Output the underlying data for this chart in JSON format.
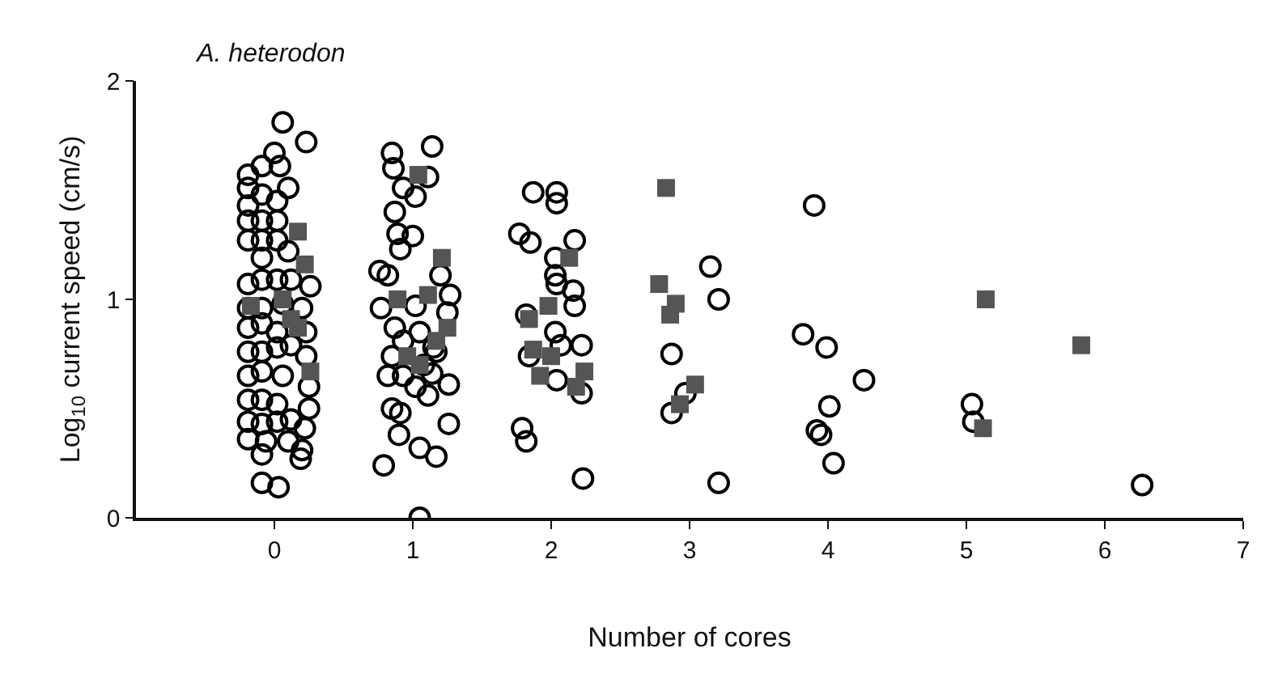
{
  "chart_data": {
    "type": "scatter",
    "title": "A. heterodon",
    "xlabel": "Number of cores",
    "ylabel": "Log$_{10}$ current speed (cm/s)",
    "xlim": [
      -1,
      7
    ],
    "xticks": [
      0,
      1,
      2,
      3,
      4,
      5,
      6,
      7
    ],
    "ylim": [
      0,
      2
    ],
    "yticks": [
      0,
      1,
      2
    ],
    "grid": false,
    "series": [
      {
        "color": "#000000",
        "marker": "circle",
        "x": [
          0.06,
          0.23,
          -0.19,
          -0.09,
          0,
          0.04,
          -0.19,
          -0.09,
          0.02,
          0.1,
          -0.19,
          -0.19,
          -0.09,
          0.02,
          -0.19,
          -0.09,
          0.02,
          0.1,
          -0.09,
          -0.19,
          -0.09,
          0.02,
          0.12,
          0.26,
          -0.19,
          -0.09,
          0.2,
          -0.19,
          -0.09,
          0.02,
          0.23,
          -0.19,
          -0.09,
          0.02,
          0.12,
          0.23,
          -0.19,
          -0.09,
          0.06,
          0.25,
          -0.19,
          -0.09,
          0.02,
          0.25,
          -0.19,
          -0.09,
          0.02,
          0.12,
          0.22,
          -0.19,
          -0.06,
          0.1,
          0.2,
          -0.09,
          0.19,
          -0.09,
          0.03,
          0.06,
          0.85,
          0.86,
          1.14,
          0.93,
          1.02,
          1.11,
          0.87,
          0.89,
          1,
          0.91,
          0.76,
          0.82,
          0.77,
          1.2,
          1.27,
          1.25,
          1.02,
          0.87,
          0.93,
          0.85,
          1.05,
          1.15,
          0.82,
          0.93,
          1.14,
          1.02,
          1.26,
          0.85,
          0.91,
          1.11,
          1.26,
          0.9,
          1.05,
          1.17,
          0.79,
          1.05,
          1.17,
          1.08,
          1.87,
          2.04,
          2.04,
          1.77,
          1.85,
          2.17,
          2.03,
          2.03,
          2.04,
          2.16,
          2.17,
          1.82,
          2.03,
          2.07,
          2.22,
          1.84,
          2.04,
          2.22,
          1.79,
          1.82,
          2.23,
          3.15,
          3.21,
          2.87,
          2.97,
          2.87,
          3.21,
          3.9,
          3.82,
          3.99,
          4.26,
          4.01,
          3.92,
          3.95,
          4.04,
          5.04,
          5.05,
          6.27
        ],
        "values": [
          1.81,
          1.72,
          1.57,
          1.61,
          1.67,
          1.61,
          1.51,
          1.48,
          1.45,
          1.51,
          1.43,
          1.36,
          1.36,
          1.36,
          1.27,
          1.27,
          1.27,
          1.22,
          1.19,
          1.07,
          1.09,
          1.09,
          1.09,
          1.06,
          0.96,
          0.96,
          0.96,
          0.87,
          0.89,
          0.85,
          0.85,
          0.76,
          0.76,
          0.78,
          0.79,
          0.74,
          0.65,
          0.67,
          0.65,
          0.6,
          0.54,
          0.54,
          0.52,
          0.5,
          0.44,
          0.43,
          0.44,
          0.45,
          0.41,
          0.36,
          0.35,
          0.35,
          0.31,
          0.29,
          0.27,
          0.16,
          0.14,
          0.98,
          1.67,
          1.6,
          1.7,
          1.51,
          1.47,
          1.56,
          1.4,
          1.3,
          1.29,
          1.23,
          1.13,
          1.11,
          0.96,
          1.11,
          1.02,
          0.94,
          0.97,
          0.87,
          0.81,
          0.74,
          0.85,
          0.78,
          0.65,
          0.65,
          0.66,
          0.6,
          0.61,
          0.5,
          0.48,
          0.56,
          0.43,
          0.38,
          0.32,
          0.28,
          0.24,
          0,
          0.76,
          0.7,
          1.49,
          1.49,
          1.44,
          1.3,
          1.26,
          1.27,
          1.19,
          1.11,
          1.07,
          1.04,
          0.97,
          0.93,
          0.85,
          0.79,
          0.79,
          0.74,
          0.63,
          0.57,
          0.41,
          0.35,
          0.18,
          1.15,
          1,
          0.75,
          0.57,
          0.48,
          0.16,
          1.43,
          0.84,
          0.78,
          0.63,
          0.51,
          0.4,
          0.38,
          0.25,
          0.52,
          0.44,
          0.15
        ]
      },
      {
        "color": "#555555",
        "marker": "square",
        "x": [
          0.17,
          0.22,
          -0.17,
          0.06,
          0.12,
          0.26,
          0.17,
          1.04,
          1.21,
          0.89,
          1.11,
          1.25,
          0.96,
          1.17,
          1.05,
          1.98,
          1.84,
          2.13,
          1.87,
          1.92,
          2,
          2.24,
          2.18,
          2.83,
          2.78,
          2.9,
          2.86,
          3.04,
          2.93,
          5.12,
          5.14,
          5.83
        ],
        "values": [
          1.31,
          1.16,
          0.97,
          1,
          0.91,
          0.67,
          0.87,
          1.57,
          1.19,
          1,
          1.02,
          0.87,
          0.74,
          0.81,
          0.7,
          0.97,
          0.91,
          1.19,
          0.77,
          0.65,
          0.74,
          0.67,
          0.6,
          1.51,
          1.07,
          0.98,
          0.93,
          0.61,
          0.52,
          0.41,
          1,
          0.79
        ]
      }
    ]
  }
}
